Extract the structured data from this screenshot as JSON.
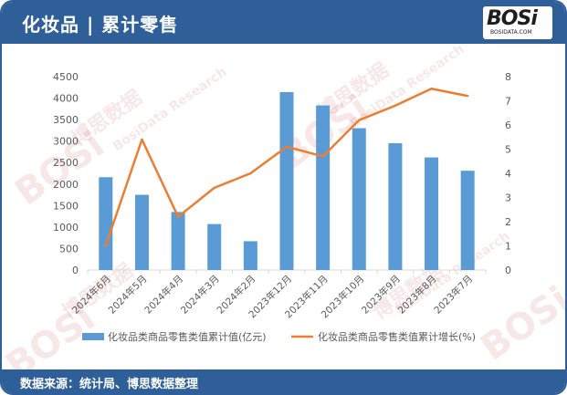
{
  "header": {
    "title": "化妆品 | 累计零售",
    "logo_text": "BOSi",
    "logo_sub": "BOSIDATA.COM"
  },
  "footer": {
    "source": "数据来源：统计局、博思数据整理"
  },
  "watermark": {
    "brand": "BOSi",
    "cn": "博思数据",
    "en": "BosiData Research"
  },
  "colors": {
    "frame": "#2f5f99",
    "bar": "#5b9bd5",
    "line": "#ed7d31",
    "axis_text": "#595959"
  },
  "chart_data": {
    "type": "bar",
    "categories": [
      "2024年6月",
      "2024年5月",
      "2024年4月",
      "2024年3月",
      "2024年2月",
      "2023年12月",
      "2023年11月",
      "2023年10月",
      "2023年9月",
      "2023年8月",
      "2023年7月"
    ],
    "series": [
      {
        "name": "化妆品类商品零售类值累计值(亿元)",
        "type": "bar",
        "axis": "left",
        "values": [
          2160,
          1750,
          1350,
          1070,
          670,
          4140,
          3830,
          3300,
          2950,
          2620,
          2310
        ]
      },
      {
        "name": "化妆品类商品零售类值累计增长(%)",
        "type": "line",
        "axis": "right",
        "values": [
          1.0,
          5.4,
          2.2,
          3.4,
          4.0,
          5.1,
          4.7,
          6.2,
          6.8,
          7.5,
          7.2
        ]
      }
    ],
    "y_left": {
      "min": 0,
      "max": 4500,
      "ticks": [
        "0",
        "500",
        "1000",
        "1500",
        "2000",
        "2500",
        "3000",
        "3500",
        "4000",
        "4500"
      ]
    },
    "y_right": {
      "min": 0,
      "max": 8,
      "ticks": [
        "0",
        "1",
        "2",
        "3",
        "4",
        "5",
        "6",
        "7",
        "8"
      ]
    },
    "grid": false,
    "legend": "bottom"
  }
}
